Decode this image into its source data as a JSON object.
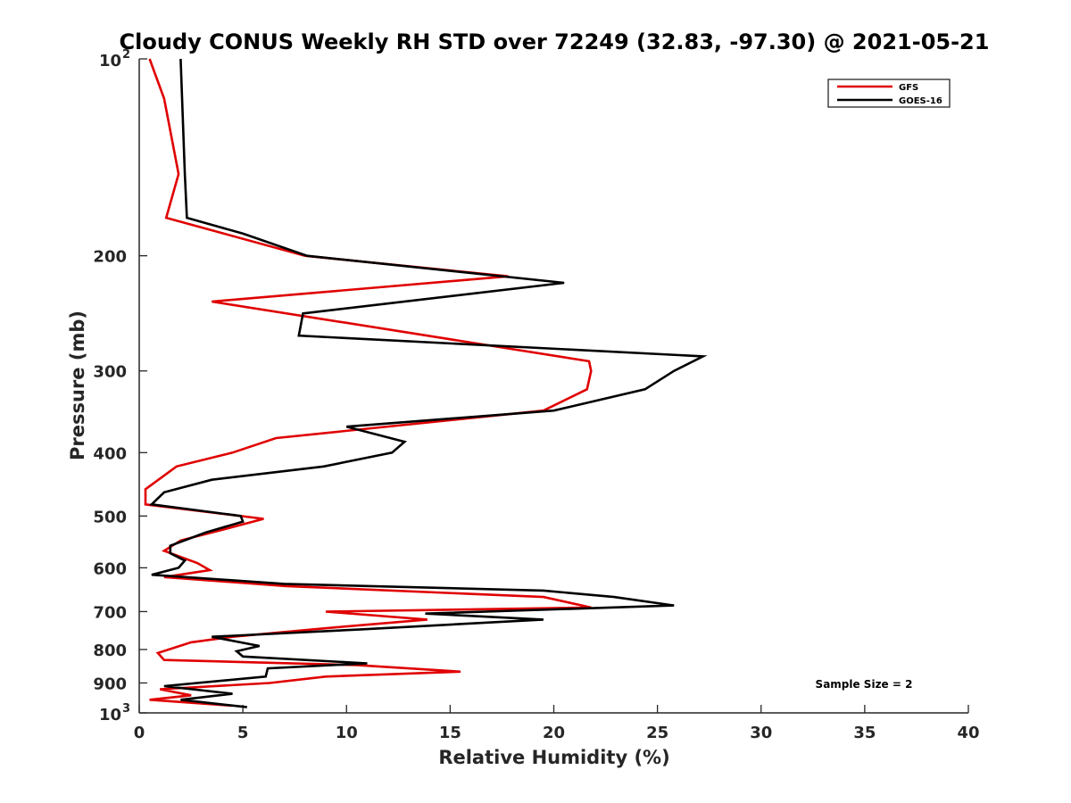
{
  "chart_data": {
    "type": "line",
    "title": "Cloudy CONUS Weekly RH STD over 72249 (32.83, -97.30) @ 2021-05-21",
    "xlabel": "Relative Humidity (%)",
    "ylabel": "Pressure (mb)",
    "xlim": [
      0,
      40
    ],
    "ylim": [
      100,
      1000
    ],
    "y_scale": "log",
    "y_direction": "reversed",
    "x_ticks": [
      "0",
      "5",
      "10",
      "15",
      "20",
      "25",
      "30",
      "35",
      "40"
    ],
    "y_ticks": [
      {
        "value": 100,
        "label": "10",
        "sup": "2"
      },
      {
        "value": 200,
        "label": "200",
        "sup": ""
      },
      {
        "value": 300,
        "label": "300",
        "sup": ""
      },
      {
        "value": 400,
        "label": "400",
        "sup": ""
      },
      {
        "value": 500,
        "label": "500",
        "sup": ""
      },
      {
        "value": 600,
        "label": "600",
        "sup": ""
      },
      {
        "value": 700,
        "label": "700",
        "sup": ""
      },
      {
        "value": 800,
        "label": "800",
        "sup": ""
      },
      {
        "value": 900,
        "label": "900",
        "sup": ""
      },
      {
        "value": 1000,
        "label": "10",
        "sup": "3"
      }
    ],
    "legend_position": "top-right",
    "annotation": "Sample Size = 2",
    "series": [
      {
        "name": "GFS",
        "color": "#e00000",
        "points": [
          [
            0.5,
            100
          ],
          [
            1.2,
            115
          ],
          [
            1.9,
            150
          ],
          [
            1.3,
            175
          ],
          [
            8.0,
            200
          ],
          [
            17.8,
            215
          ],
          [
            3.5,
            235
          ],
          [
            21.7,
            290
          ],
          [
            21.8,
            300
          ],
          [
            21.6,
            320
          ],
          [
            19.5,
            345
          ],
          [
            6.6,
            380
          ],
          [
            4.5,
            400
          ],
          [
            1.8,
            420
          ],
          [
            0.3,
            455
          ],
          [
            0.3,
            480
          ],
          [
            6.0,
            505
          ],
          [
            4.5,
            520
          ],
          [
            2.0,
            545
          ],
          [
            1.2,
            565
          ],
          [
            2.8,
            590
          ],
          [
            3.4,
            605
          ],
          [
            1.2,
            620
          ],
          [
            7.1,
            640
          ],
          [
            19.5,
            665
          ],
          [
            21.8,
            690
          ],
          [
            9.0,
            700
          ],
          [
            13.9,
            720
          ],
          [
            9.5,
            740
          ],
          [
            4.5,
            765
          ],
          [
            2.5,
            780
          ],
          [
            0.9,
            810
          ],
          [
            1.2,
            830
          ],
          [
            10.5,
            845
          ],
          [
            15.5,
            865
          ],
          [
            9.0,
            880
          ],
          [
            6.3,
            900
          ],
          [
            1.0,
            920
          ],
          [
            2.5,
            940
          ],
          [
            0.5,
            955
          ],
          [
            4.5,
            975
          ]
        ]
      },
      {
        "name": "GOES-16",
        "color": "#000000",
        "points": [
          [
            2.0,
            100
          ],
          [
            2.2,
            150
          ],
          [
            2.3,
            175
          ],
          [
            5.0,
            185
          ],
          [
            8.1,
            200
          ],
          [
            20.5,
            220
          ],
          [
            7.9,
            245
          ],
          [
            7.7,
            265
          ],
          [
            27.2,
            285
          ],
          [
            25.8,
            300
          ],
          [
            24.4,
            320
          ],
          [
            20.0,
            345
          ],
          [
            10.0,
            365
          ],
          [
            12.8,
            385
          ],
          [
            12.2,
            400
          ],
          [
            8.9,
            420
          ],
          [
            3.5,
            440
          ],
          [
            1.2,
            460
          ],
          [
            0.6,
            480
          ],
          [
            4.9,
            500
          ],
          [
            5.0,
            510
          ],
          [
            3.2,
            530
          ],
          [
            1.5,
            555
          ],
          [
            1.5,
            570
          ],
          [
            2.2,
            585
          ],
          [
            1.9,
            600
          ],
          [
            0.6,
            615
          ],
          [
            7.0,
            635
          ],
          [
            19.5,
            650
          ],
          [
            22.9,
            665
          ],
          [
            25.8,
            685
          ],
          [
            13.8,
            705
          ],
          [
            19.5,
            720
          ],
          [
            10.8,
            745
          ],
          [
            3.5,
            765
          ],
          [
            5.8,
            790
          ],
          [
            4.7,
            805
          ],
          [
            5.0,
            820
          ],
          [
            11.0,
            840
          ],
          [
            6.2,
            855
          ],
          [
            6.1,
            880
          ],
          [
            1.2,
            910
          ],
          [
            4.5,
            935
          ],
          [
            2.0,
            955
          ],
          [
            5.2,
            980
          ]
        ]
      }
    ]
  }
}
